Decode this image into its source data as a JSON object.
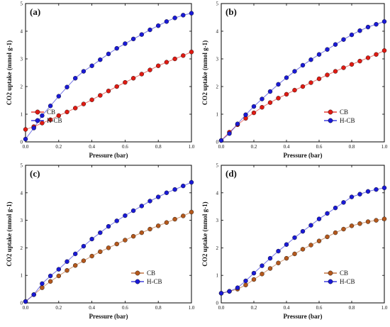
{
  "chart_data": [
    {
      "type": "scatter",
      "panel_label": "(a)",
      "xlabel": "Pressure (bar)",
      "ylabel": "CO2 uptake (mmol g-1)",
      "xlim": [
        0.0,
        1.0
      ],
      "ylim": [
        0,
        5
      ],
      "xticks": [
        "0.0",
        "0.2",
        "0.4",
        "0.6",
        "0.8",
        "1.0"
      ],
      "yticks": [
        "0",
        "1",
        "2",
        "3",
        "4",
        "5"
      ],
      "legend_position": "bottom-left",
      "series": [
        {
          "name": "CB",
          "color": "#e01a12",
          "x": [
            0.0,
            0.05,
            0.1,
            0.15,
            0.2,
            0.25,
            0.3,
            0.35,
            0.4,
            0.45,
            0.5,
            0.55,
            0.6,
            0.65,
            0.7,
            0.75,
            0.8,
            0.85,
            0.9,
            0.95,
            1.0
          ],
          "y": [
            0.45,
            0.55,
            0.68,
            0.8,
            0.95,
            1.08,
            1.22,
            1.37,
            1.52,
            1.68,
            1.84,
            2.0,
            2.15,
            2.3,
            2.45,
            2.6,
            2.75,
            2.88,
            3.0,
            3.12,
            3.25
          ]
        },
        {
          "name": "H-CB",
          "color": "#1a1ad6",
          "x": [
            0.0,
            0.05,
            0.1,
            0.15,
            0.2,
            0.25,
            0.3,
            0.35,
            0.4,
            0.45,
            0.5,
            0.55,
            0.6,
            0.65,
            0.7,
            0.75,
            0.8,
            0.85,
            0.9,
            0.95,
            1.0
          ],
          "y": [
            0.1,
            0.5,
            0.95,
            1.3,
            1.65,
            1.98,
            2.3,
            2.55,
            2.75,
            2.97,
            3.18,
            3.38,
            3.55,
            3.72,
            3.88,
            4.05,
            4.2,
            4.35,
            4.48,
            4.58,
            4.65
          ]
        }
      ]
    },
    {
      "type": "scatter",
      "panel_label": "(b)",
      "xlabel": "Pressure (bar)",
      "ylabel": "CO2 uptake (mmol g-1)",
      "xlim": [
        0.0,
        1.0
      ],
      "ylim": [
        0,
        5
      ],
      "xticks": [
        "0.0",
        "0.2",
        "0.4",
        "0.6",
        "0.8",
        "1.0"
      ],
      "yticks": [
        "0",
        "1",
        "2",
        "3",
        "4",
        "5"
      ],
      "legend_position": "bottom-right",
      "series": [
        {
          "name": "CB",
          "color": "#e01a12",
          "x": [
            0.0,
            0.05,
            0.1,
            0.15,
            0.2,
            0.25,
            0.3,
            0.35,
            0.4,
            0.45,
            0.5,
            0.55,
            0.6,
            0.65,
            0.7,
            0.75,
            0.8,
            0.85,
            0.9,
            0.95,
            1.0
          ],
          "y": [
            0.05,
            0.35,
            0.62,
            0.85,
            1.05,
            1.25,
            1.42,
            1.58,
            1.72,
            1.87,
            2.0,
            2.14,
            2.28,
            2.42,
            2.55,
            2.68,
            2.8,
            2.92,
            3.04,
            3.16,
            3.3
          ]
        },
        {
          "name": "H-CB",
          "color": "#1a1ad6",
          "x": [
            0.0,
            0.05,
            0.1,
            0.15,
            0.2,
            0.25,
            0.3,
            0.35,
            0.4,
            0.45,
            0.5,
            0.55,
            0.6,
            0.65,
            0.7,
            0.75,
            0.8,
            0.85,
            0.9,
            0.95,
            1.0
          ],
          "y": [
            0.05,
            0.3,
            0.65,
            0.98,
            1.28,
            1.55,
            1.82,
            2.08,
            2.32,
            2.55,
            2.77,
            2.97,
            3.16,
            3.34,
            3.52,
            3.7,
            3.87,
            4.02,
            4.15,
            4.25,
            4.35
          ]
        }
      ]
    },
    {
      "type": "scatter",
      "panel_label": "(c)",
      "xlabel": "Pressure (bar)",
      "ylabel": "CO2 uptake (mmol g-1)",
      "xlim": [
        0.0,
        1.0
      ],
      "ylim": [
        0,
        5
      ],
      "xticks": [
        "0.0",
        "0.2",
        "0.4",
        "0.6",
        "0.8",
        "1.0"
      ],
      "yticks": [
        "0",
        "1",
        "2",
        "3",
        "4",
        "5"
      ],
      "legend_position": "bottom-right",
      "series": [
        {
          "name": "CB",
          "color": "#b4581c",
          "x": [
            0.0,
            0.05,
            0.1,
            0.15,
            0.2,
            0.25,
            0.3,
            0.35,
            0.4,
            0.45,
            0.5,
            0.55,
            0.6,
            0.65,
            0.7,
            0.75,
            0.8,
            0.85,
            0.9,
            0.95,
            1.0
          ],
          "y": [
            0.05,
            0.3,
            0.55,
            0.78,
            0.98,
            1.18,
            1.36,
            1.53,
            1.7,
            1.86,
            2.0,
            2.14,
            2.28,
            2.42,
            2.55,
            2.68,
            2.8,
            2.92,
            3.04,
            3.16,
            3.3
          ]
        },
        {
          "name": "H-CB",
          "color": "#1a1ad6",
          "x": [
            0.0,
            0.05,
            0.1,
            0.15,
            0.2,
            0.25,
            0.3,
            0.35,
            0.4,
            0.45,
            0.5,
            0.55,
            0.6,
            0.65,
            0.7,
            0.75,
            0.8,
            0.85,
            0.9,
            0.95,
            1.0
          ],
          "y": [
            0.05,
            0.3,
            0.7,
            0.98,
            1.22,
            1.5,
            1.78,
            2.06,
            2.32,
            2.55,
            2.78,
            2.98,
            3.17,
            3.35,
            3.52,
            3.7,
            3.85,
            4.0,
            4.12,
            4.25,
            4.38
          ]
        }
      ]
    },
    {
      "type": "scatter",
      "panel_label": "(d)",
      "xlabel": "Pressure (bar)",
      "ylabel": "CO2 uptake (mmol g-1)",
      "xlim": [
        0.0,
        1.0
      ],
      "ylim": [
        0,
        5
      ],
      "xticks": [
        "0.0",
        "0.2",
        "0.4",
        "0.6",
        "0.8",
        "1.0"
      ],
      "yticks": [
        "0",
        "1",
        "2",
        "3",
        "4",
        "5"
      ],
      "legend_position": "bottom-right",
      "series": [
        {
          "name": "CB",
          "color": "#b4581c",
          "x": [
            0.0,
            0.05,
            0.1,
            0.15,
            0.2,
            0.25,
            0.3,
            0.35,
            0.4,
            0.45,
            0.5,
            0.55,
            0.6,
            0.65,
            0.7,
            0.75,
            0.8,
            0.85,
            0.9,
            0.95,
            1.0
          ],
          "y": [
            0.35,
            0.42,
            0.5,
            0.65,
            0.85,
            1.05,
            1.25,
            1.45,
            1.62,
            1.78,
            1.95,
            2.1,
            2.25,
            2.4,
            2.55,
            2.68,
            2.8,
            2.88,
            2.95,
            3.0,
            3.05
          ]
        },
        {
          "name": "H-CB",
          "color": "#1a1ad6",
          "x": [
            0.0,
            0.05,
            0.1,
            0.15,
            0.2,
            0.25,
            0.3,
            0.35,
            0.4,
            0.45,
            0.5,
            0.55,
            0.6,
            0.65,
            0.7,
            0.75,
            0.8,
            0.85,
            0.9,
            0.95,
            1.0
          ],
          "y": [
            0.35,
            0.42,
            0.55,
            0.8,
            1.08,
            1.35,
            1.62,
            1.88,
            2.12,
            2.37,
            2.6,
            2.82,
            3.05,
            3.25,
            3.45,
            3.65,
            3.85,
            3.95,
            4.05,
            4.12,
            4.18
          ]
        }
      ]
    }
  ]
}
